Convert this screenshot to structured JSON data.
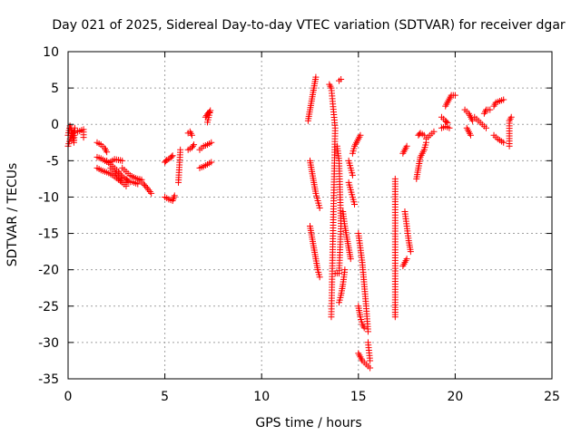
{
  "chart_data": {
    "type": "scatter",
    "title": "Day 021 of 2025, Sidereal Day-to-day VTEC variation (SDTVAR) for receiver dgar",
    "xlabel": "GPS time / hours",
    "ylabel": "SDTVAR / TECUs",
    "xlim": [
      0,
      25
    ],
    "ylim": [
      -35,
      10
    ],
    "xticks": [
      0,
      5,
      10,
      15,
      20,
      25
    ],
    "yticks": [
      10,
      5,
      0,
      -5,
      -10,
      -15,
      -20,
      -25,
      -30,
      -35
    ],
    "grid": true,
    "marker": "+",
    "color": "#ff0000",
    "segments": [
      [
        [
          0.0,
          -1.5
        ],
        [
          0.1,
          -0.2
        ],
        [
          0.2,
          -1.0
        ],
        [
          0.3,
          -2.5
        ],
        [
          0.35,
          -0.5
        ]
      ],
      [
        [
          0.0,
          -3.0
        ],
        [
          0.1,
          -2.0
        ],
        [
          0.2,
          -1.5
        ],
        [
          0.3,
          -1.0
        ]
      ],
      [
        [
          0.5,
          -1.0
        ],
        [
          0.6,
          -0.9
        ],
        [
          0.8,
          -0.7
        ],
        [
          0.8,
          -1.8
        ]
      ],
      [
        [
          1.5,
          -2.5
        ],
        [
          1.7,
          -2.8
        ],
        [
          1.9,
          -3.3
        ],
        [
          2.0,
          -3.8
        ]
      ],
      [
        [
          1.5,
          -4.5
        ],
        [
          1.7,
          -4.7
        ],
        [
          1.9,
          -5.0
        ],
        [
          2.1,
          -5.3
        ],
        [
          2.4,
          -4.8
        ],
        [
          2.6,
          -4.9
        ],
        [
          2.8,
          -5.0
        ]
      ],
      [
        [
          1.5,
          -6.0
        ],
        [
          1.7,
          -6.3
        ],
        [
          1.9,
          -6.5
        ],
        [
          2.1,
          -6.7
        ],
        [
          2.3,
          -7.0
        ],
        [
          2.5,
          -7.4
        ],
        [
          2.7,
          -7.8
        ]
      ],
      [
        [
          2.0,
          -5.0
        ],
        [
          2.2,
          -5.5
        ],
        [
          2.4,
          -6.0
        ],
        [
          2.6,
          -6.5
        ],
        [
          2.8,
          -7.2
        ],
        [
          3.0,
          -7.5
        ],
        [
          3.1,
          -7.8
        ]
      ],
      [
        [
          2.2,
          -6.0
        ],
        [
          2.4,
          -6.5
        ],
        [
          2.6,
          -7.2
        ],
        [
          2.8,
          -8.0
        ],
        [
          3.0,
          -8.5
        ]
      ],
      [
        [
          2.8,
          -6.0
        ],
        [
          3.0,
          -6.5
        ],
        [
          3.2,
          -7.0
        ],
        [
          3.4,
          -7.3
        ],
        [
          3.6,
          -7.5
        ],
        [
          3.8,
          -7.6
        ]
      ],
      [
        [
          3.0,
          -8.0
        ],
        [
          3.3,
          -7.9
        ],
        [
          3.6,
          -8.2
        ]
      ],
      [
        [
          3.7,
          -7.7
        ],
        [
          3.9,
          -8.2
        ],
        [
          4.1,
          -8.8
        ],
        [
          4.3,
          -9.5
        ]
      ],
      [
        [
          5.0,
          -5.2
        ],
        [
          5.1,
          -4.9
        ],
        [
          5.3,
          -4.6
        ],
        [
          5.4,
          -4.3
        ]
      ],
      [
        [
          5.0,
          -10.0
        ],
        [
          5.2,
          -10.3
        ],
        [
          5.4,
          -10.5
        ],
        [
          5.5,
          -9.8
        ]
      ],
      [
        [
          5.7,
          -8.0
        ],
        [
          5.8,
          -3.5
        ]
      ],
      [
        [
          6.2,
          -3.5
        ],
        [
          6.4,
          -3.2
        ],
        [
          6.5,
          -2.8
        ]
      ],
      [
        [
          6.2,
          -1.2
        ],
        [
          6.3,
          -1.0
        ],
        [
          6.4,
          -1.5
        ]
      ],
      [
        [
          6.8,
          -3.5
        ],
        [
          7.0,
          -3.0
        ],
        [
          7.2,
          -2.8
        ],
        [
          7.4,
          -2.5
        ]
      ],
      [
        [
          6.8,
          -6.0
        ],
        [
          7.0,
          -5.8
        ],
        [
          7.2,
          -5.5
        ],
        [
          7.4,
          -5.2
        ]
      ],
      [
        [
          7.1,
          1.0
        ],
        [
          7.2,
          1.4
        ],
        [
          7.3,
          1.7
        ],
        [
          7.35,
          1.9
        ],
        [
          7.2,
          0.3
        ]
      ],
      [
        [
          12.5,
          -5.0
        ],
        [
          12.6,
          -6.5
        ],
        [
          12.7,
          -8.0
        ],
        [
          12.8,
          -9.5
        ],
        [
          12.9,
          -10.5
        ],
        [
          13.0,
          -11.5
        ]
      ],
      [
        [
          12.5,
          -14.0
        ],
        [
          12.6,
          -15.5
        ],
        [
          12.7,
          -17.0
        ],
        [
          12.8,
          -18.5
        ],
        [
          12.9,
          -20.0
        ],
        [
          13.0,
          -21.0
        ]
      ],
      [
        [
          12.4,
          0.5
        ],
        [
          12.5,
          2.0
        ],
        [
          12.6,
          3.5
        ],
        [
          12.7,
          5.0
        ],
        [
          12.8,
          6.5
        ]
      ],
      [
        [
          13.5,
          5.5
        ],
        [
          13.6,
          5.0
        ],
        [
          13.8,
          -0.5
        ],
        [
          13.6,
          -26.5
        ]
      ],
      [
        [
          14.0,
          6.0
        ],
        [
          14.1,
          6.2
        ]
      ],
      [
        [
          13.9,
          -3.0
        ],
        [
          14.0,
          -5.0
        ],
        [
          14.1,
          -14.0
        ],
        [
          14.0,
          -20.5
        ],
        [
          13.8,
          -20.5
        ]
      ],
      [
        [
          14.0,
          -24.5
        ],
        [
          14.1,
          -23.5
        ],
        [
          14.2,
          -22.0
        ],
        [
          14.3,
          -20.0
        ]
      ],
      [
        [
          14.2,
          -12.0
        ],
        [
          14.3,
          -14.0
        ],
        [
          14.4,
          -15.5
        ],
        [
          14.5,
          -17.0
        ],
        [
          14.6,
          -18.5
        ]
      ],
      [
        [
          14.5,
          -8.0
        ],
        [
          14.6,
          -9.0
        ],
        [
          14.7,
          -10.0
        ],
        [
          14.8,
          -11.0
        ]
      ],
      [
        [
          14.5,
          -5.0
        ],
        [
          14.6,
          -6.0
        ],
        [
          14.7,
          -7.0
        ]
      ],
      [
        [
          14.7,
          -4.0
        ],
        [
          14.8,
          -3.0
        ],
        [
          14.9,
          -2.5
        ],
        [
          15.0,
          -2.0
        ],
        [
          15.1,
          -1.5
        ]
      ],
      [
        [
          15.0,
          -15.0
        ],
        [
          15.1,
          -17.0
        ],
        [
          15.2,
          -19.0
        ],
        [
          15.3,
          -22.0
        ],
        [
          15.4,
          -25.0
        ],
        [
          15.5,
          -28.5
        ]
      ],
      [
        [
          15.0,
          -25.0
        ],
        [
          15.1,
          -26.5
        ],
        [
          15.2,
          -27.5
        ],
        [
          15.3,
          -28.0
        ]
      ],
      [
        [
          15.0,
          -31.5
        ],
        [
          15.2,
          -32.5
        ],
        [
          15.4,
          -33.0
        ],
        [
          15.6,
          -33.5
        ]
      ],
      [
        [
          15.5,
          -30.0
        ],
        [
          15.6,
          -32.5
        ]
      ],
      [
        [
          16.9,
          -7.5
        ],
        [
          16.9,
          -11.0
        ],
        [
          16.9,
          -18.0
        ],
        [
          16.9,
          -24.5
        ],
        [
          16.9,
          -26.5
        ]
      ],
      [
        [
          17.3,
          -4.0
        ],
        [
          17.4,
          -3.5
        ],
        [
          17.5,
          -3.0
        ]
      ],
      [
        [
          17.4,
          -12.0
        ],
        [
          17.5,
          -14.0
        ],
        [
          17.6,
          -16.0
        ],
        [
          17.7,
          -17.5
        ]
      ],
      [
        [
          17.3,
          -19.5
        ],
        [
          17.4,
          -19.0
        ],
        [
          17.5,
          -18.5
        ]
      ],
      [
        [
          18.0,
          -7.5
        ],
        [
          18.1,
          -6.0
        ],
        [
          18.2,
          -4.5
        ],
        [
          18.4,
          -3.5
        ],
        [
          18.5,
          -2.5
        ]
      ],
      [
        [
          18.1,
          -1.5
        ],
        [
          18.2,
          -1.2
        ],
        [
          18.4,
          -1.5
        ]
      ],
      [
        [
          18.5,
          -2.0
        ],
        [
          18.7,
          -1.5
        ],
        [
          18.9,
          -1.0
        ]
      ],
      [
        [
          19.3,
          -0.5
        ],
        [
          19.5,
          -0.3
        ],
        [
          19.7,
          -0.5
        ]
      ],
      [
        [
          19.3,
          1.0
        ],
        [
          19.5,
          0.5
        ],
        [
          19.6,
          0.2
        ]
      ],
      [
        [
          19.5,
          2.5
        ],
        [
          19.6,
          3.0
        ],
        [
          19.7,
          3.5
        ],
        [
          19.8,
          4.0
        ],
        [
          20.0,
          4.0
        ]
      ],
      [
        [
          20.5,
          2.0
        ],
        [
          20.7,
          1.5
        ],
        [
          20.8,
          1.0
        ],
        [
          20.9,
          0.5
        ]
      ],
      [
        [
          20.6,
          -0.5
        ],
        [
          20.7,
          -1.0
        ],
        [
          20.8,
          -1.5
        ]
      ],
      [
        [
          21.0,
          1.0
        ],
        [
          21.2,
          0.5
        ],
        [
          21.4,
          0.0
        ],
        [
          21.6,
          -0.5
        ]
      ],
      [
        [
          21.5,
          1.5
        ],
        [
          21.6,
          2.0
        ],
        [
          21.8,
          2.0
        ]
      ],
      [
        [
          22.0,
          2.5
        ],
        [
          22.1,
          3.0
        ],
        [
          22.3,
          3.2
        ],
        [
          22.5,
          3.4
        ]
      ],
      [
        [
          22.0,
          -1.5
        ],
        [
          22.2,
          -2.0
        ],
        [
          22.5,
          -2.5
        ]
      ],
      [
        [
          22.8,
          -3.0
        ],
        [
          22.8,
          0.5
        ],
        [
          22.9,
          1.0
        ]
      ]
    ]
  }
}
